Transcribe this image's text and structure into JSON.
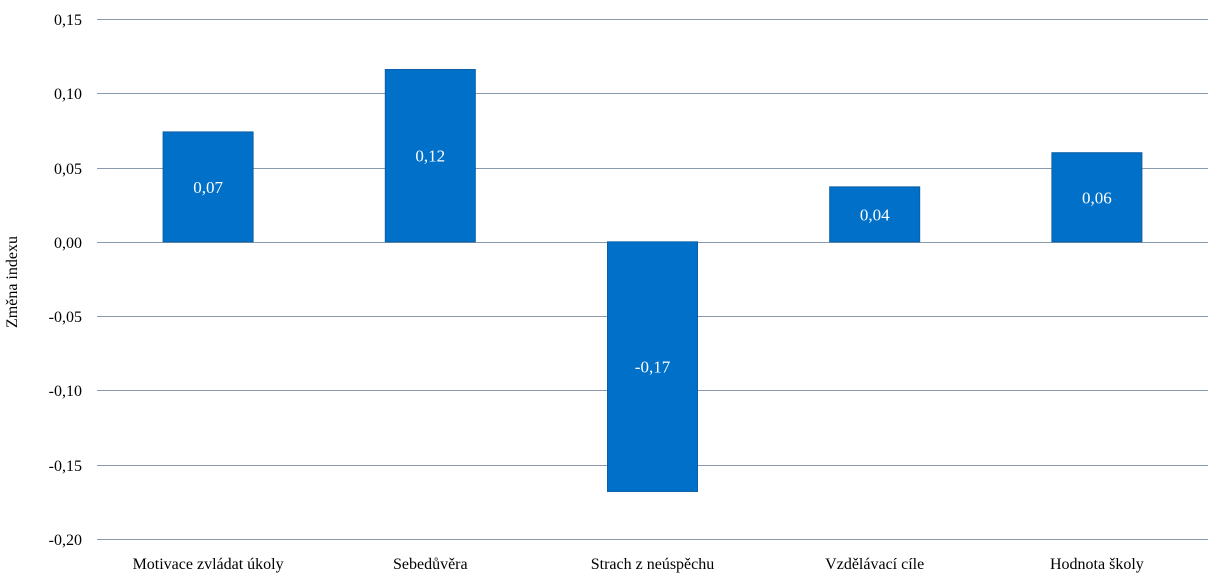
{
  "chart_data": {
    "type": "bar",
    "title": "",
    "xlabel": "",
    "ylabel": "Změna indexu",
    "categories": [
      "Motivace zvládat úkoly",
      "Sebedůvěra",
      "Strach z neúspěchu",
      "Vzdělávací cíle",
      "Hodnota školy"
    ],
    "values": [
      0.074,
      0.116,
      -0.168,
      0.037,
      0.06
    ],
    "data_labels": [
      "0,07",
      "0,12",
      "-0,17",
      "0,04",
      "0,06"
    ],
    "ylim": [
      -0.2,
      0.15
    ],
    "yticks": [
      0.15,
      0.1,
      0.05,
      0.0,
      -0.05,
      -0.1,
      -0.15,
      -0.2
    ],
    "ytick_labels": [
      "0,15",
      "0,10",
      "0,05",
      "0,00",
      "-0,05",
      "-0,10",
      "-0,15",
      "-0,20"
    ],
    "grid": true,
    "legend": "none",
    "bar_color": "#0070c8",
    "bar_edge_color": "#0a5fa6",
    "label_color": "#ffffff",
    "grid_color": "#8a9aae"
  }
}
